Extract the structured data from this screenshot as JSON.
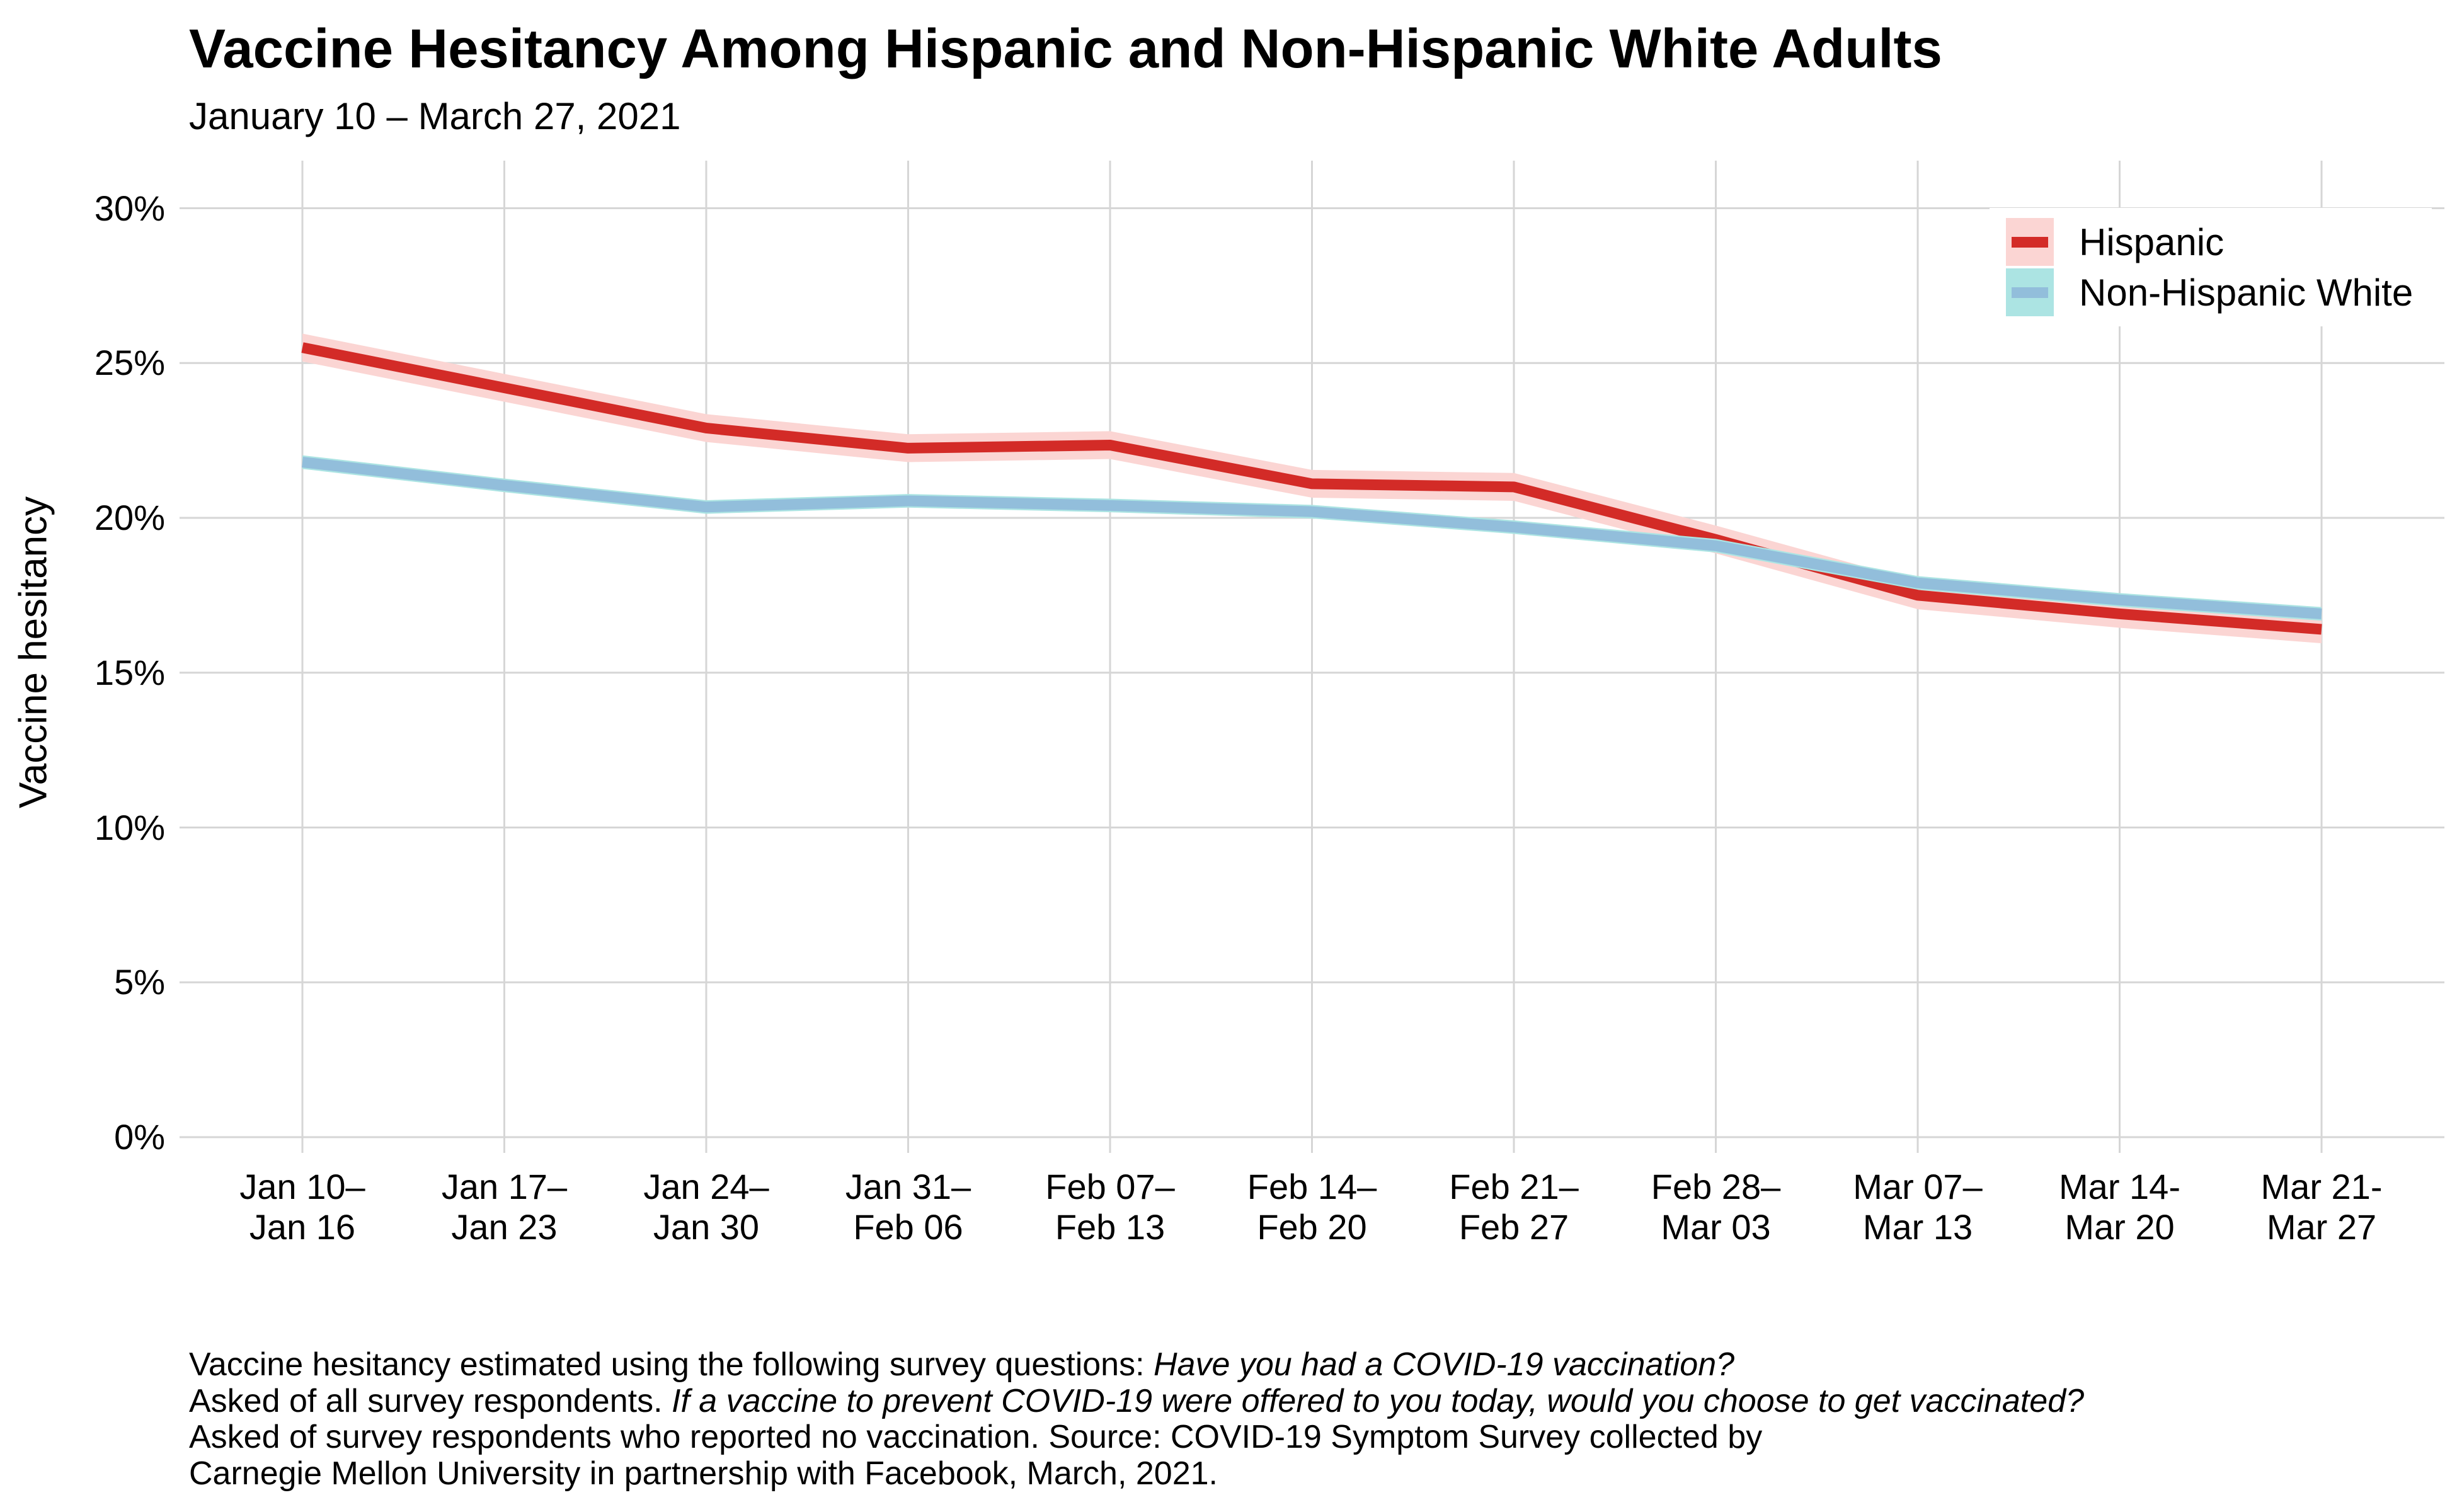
{
  "chart_data": {
    "type": "line",
    "title": "Vaccine Hesitancy Among Hispanic and Non-Hispanic White Adults",
    "subtitle": "January 10 – March 27, 2021",
    "ylabel": "Vaccine hesitancy",
    "ylim": [
      0,
      30
    ],
    "grid": "on",
    "legend_position": "top-right-inside",
    "yticks": [
      {
        "value": 0,
        "label": "0%"
      },
      {
        "value": 5,
        "label": "5%"
      },
      {
        "value": 10,
        "label": "10%"
      },
      {
        "value": 15,
        "label": "15%"
      },
      {
        "value": 20,
        "label": "20%"
      },
      {
        "value": 25,
        "label": "25%"
      },
      {
        "value": 30,
        "label": "30%"
      }
    ],
    "categories": [
      [
        "Jan 10–",
        "Jan 16"
      ],
      [
        "Jan 17–",
        "Jan 23"
      ],
      [
        "Jan 24–",
        "Jan 30"
      ],
      [
        "Jan 31–",
        "Feb 06"
      ],
      [
        "Feb 07–",
        "Feb 13"
      ],
      [
        "Feb 14–",
        "Feb 20"
      ],
      [
        "Feb 21–",
        "Feb 27"
      ],
      [
        "Feb 28–",
        "Mar 03"
      ],
      [
        "Mar 07–",
        "Mar 13"
      ],
      [
        "Mar 14-",
        "Mar 20"
      ],
      [
        "Mar 21-",
        "Mar 27"
      ]
    ],
    "series": [
      {
        "name": "Hispanic",
        "color": "#d32b27",
        "band_color": "#fbd5d3",
        "band_halfwidth": 0.45,
        "values": [
          25.5,
          24.2,
          22.9,
          22.25,
          22.35,
          21.1,
          21.0,
          19.3,
          17.5,
          16.9,
          16.4
        ]
      },
      {
        "name": "Non-Hispanic White",
        "color": "#92bedb",
        "band_color": "#ace4e3",
        "band_halfwidth": 0.22,
        "values": [
          21.8,
          21.05,
          20.35,
          20.55,
          20.4,
          20.2,
          19.7,
          19.1,
          17.9,
          17.35,
          16.9
        ]
      }
    ]
  },
  "caption": {
    "l1_normal": "Vaccine hesitancy estimated using the following survey questions: ",
    "l1_italic": "Have you had a COVID-19 vaccination?",
    "l2_normal": "Asked of all survey respondents. ",
    "l2_italic": "If a vaccine to prevent COVID-19 were offered to you today, would you choose to get vaccinated?",
    "l3": "Asked of survey respondents who reported no vaccination. Source: COVID-19 Symptom Survey collected by",
    "l4": "Carnegie Mellon University in partnership with Facebook, March, 2021."
  },
  "colors": {
    "background": "#ffffff",
    "gridline": "#d6d6d6",
    "text": "#000000",
    "legend_background": "#ffffff"
  }
}
